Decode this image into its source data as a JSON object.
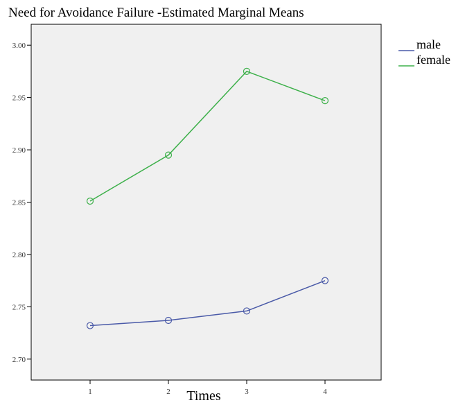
{
  "chart_data": {
    "type": "line",
    "title": "Need for Avoidance Failure -Estimated Marginal Means",
    "xlabel": "Times",
    "ylabel": "",
    "categories": [
      "1",
      "2",
      "3",
      "4"
    ],
    "ylim": [
      2.68,
      3.02
    ],
    "yticks": [
      "2.70",
      "2.75",
      "2.80",
      "2.85",
      "2.90",
      "2.95",
      "3.00"
    ],
    "series": [
      {
        "name": "male",
        "color": "#4a5aa8",
        "values": [
          2.732,
          2.737,
          2.746,
          2.775
        ]
      },
      {
        "name": "female",
        "color": "#3db04a",
        "values": [
          2.851,
          2.895,
          2.975,
          2.947
        ]
      }
    ],
    "legend": "right",
    "grid": false,
    "plot_background": "#f0f0f0"
  }
}
